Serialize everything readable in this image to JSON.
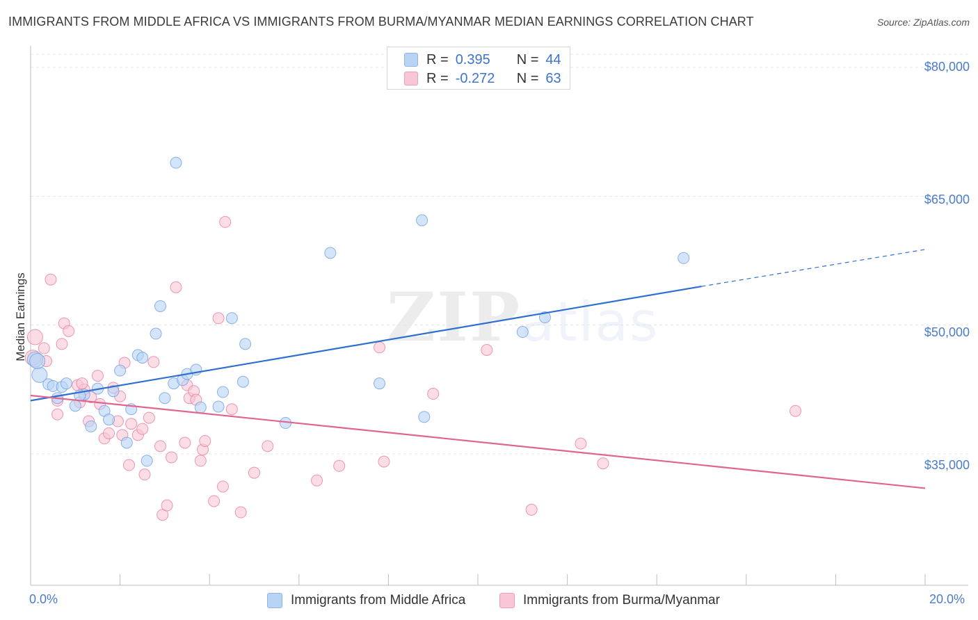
{
  "header": {
    "title": "IMMIGRANTS FROM MIDDLE AFRICA VS IMMIGRANTS FROM BURMA/MYANMAR MEDIAN EARNINGS CORRELATION CHART",
    "source": "Source: ZipAtlas.com"
  },
  "watermark": {
    "zip": "ZIP",
    "atlas": "atlas"
  },
  "legend": {
    "rows": [
      {
        "r_label": "R =",
        "r_value": "0.395",
        "n_label": "N =",
        "n_value": "44"
      },
      {
        "r_label": "R =",
        "r_value": "-0.272",
        "n_label": "N =",
        "n_value": "63"
      }
    ]
  },
  "axes": {
    "ylabel": "Median Earnings",
    "y_ticks": [
      "$80,000",
      "$65,000",
      "$50,000",
      "$35,000"
    ],
    "x_min_label": "0.0%",
    "x_max_label": "20.0%"
  },
  "chart_data": {
    "type": "scatter",
    "title": "IMMIGRANTS FROM MIDDLE AFRICA VS IMMIGRANTS FROM BURMA/MYANMAR MEDIAN EARNINGS CORRELATION CHART",
    "xlabel": "",
    "ylabel": "Median Earnings",
    "xlim": [
      0,
      20
    ],
    "ylim": [
      22000,
      84000
    ],
    "y_ticks": [
      35000,
      50000,
      65000,
      80000
    ],
    "x_unit": "%",
    "grid": true,
    "legend_position": "top-center",
    "series": [
      {
        "name": "Immigrants from Middle Africa",
        "color": "#6fa0e0",
        "fill": "#b9d3f5",
        "r": 0.395,
        "n": 44,
        "trend": {
          "x0": 0,
          "y0": 41200,
          "x1": 15,
          "y1": 54500,
          "dashed_to_x": 20,
          "dashed_to_y": 58800
        },
        "points": [
          [
            0.1,
            46000
          ],
          [
            0.2,
            44200
          ],
          [
            0.4,
            43100
          ],
          [
            0.5,
            42900
          ],
          [
            0.6,
            41500
          ],
          [
            0.7,
            42800
          ],
          [
            0.8,
            43200
          ],
          [
            1.0,
            40600
          ],
          [
            1.2,
            41900
          ],
          [
            1.35,
            38200
          ],
          [
            1.5,
            42600
          ],
          [
            1.65,
            40000
          ],
          [
            1.75,
            39000
          ],
          [
            1.85,
            42300
          ],
          [
            2.0,
            44700
          ],
          [
            2.15,
            36300
          ],
          [
            2.25,
            40200
          ],
          [
            2.4,
            46500
          ],
          [
            2.5,
            46200
          ],
          [
            2.6,
            34200
          ],
          [
            2.8,
            49000
          ],
          [
            2.9,
            52200
          ],
          [
            3.0,
            41500
          ],
          [
            3.2,
            43200
          ],
          [
            3.25,
            68900
          ],
          [
            3.4,
            43600
          ],
          [
            3.5,
            44300
          ],
          [
            3.7,
            44800
          ],
          [
            3.8,
            40400
          ],
          [
            4.2,
            40500
          ],
          [
            4.3,
            42200
          ],
          [
            4.5,
            50800
          ],
          [
            4.75,
            43400
          ],
          [
            4.8,
            47800
          ],
          [
            5.7,
            38600
          ],
          [
            6.7,
            58400
          ],
          [
            7.8,
            43200
          ],
          [
            8.8,
            39300
          ],
          [
            8.75,
            62200
          ],
          [
            11.0,
            49200
          ],
          [
            11.5,
            50900
          ],
          [
            14.6,
            57800
          ],
          [
            0.15,
            45800
          ],
          [
            1.1,
            41800
          ]
        ]
      },
      {
        "name": "Immigrants from Burma/Myanmar",
        "color": "#e87ea2",
        "fill": "#f8c6d6",
        "r": -0.272,
        "n": 63,
        "trend": {
          "x0": 0,
          "y0": 41800,
          "x1": 20,
          "y1": 31000
        },
        "points": [
          [
            0.05,
            46200
          ],
          [
            0.1,
            48600
          ],
          [
            0.3,
            47300
          ],
          [
            0.45,
            55300
          ],
          [
            0.6,
            41200
          ],
          [
            0.6,
            39600
          ],
          [
            0.7,
            47800
          ],
          [
            0.75,
            50200
          ],
          [
            0.85,
            49300
          ],
          [
            1.05,
            43000
          ],
          [
            1.1,
            41000
          ],
          [
            1.2,
            42500
          ],
          [
            1.3,
            38800
          ],
          [
            1.35,
            41600
          ],
          [
            1.5,
            44100
          ],
          [
            1.55,
            40800
          ],
          [
            1.65,
            36800
          ],
          [
            1.75,
            37400
          ],
          [
            1.85,
            42700
          ],
          [
            1.95,
            38800
          ],
          [
            2.05,
            37200
          ],
          [
            2.1,
            45600
          ],
          [
            2.2,
            33700
          ],
          [
            2.25,
            38500
          ],
          [
            2.4,
            37200
          ],
          [
            2.5,
            37900
          ],
          [
            2.55,
            32600
          ],
          [
            2.65,
            39200
          ],
          [
            2.75,
            45700
          ],
          [
            2.9,
            35900
          ],
          [
            2.95,
            27900
          ],
          [
            3.05,
            29000
          ],
          [
            3.15,
            34600
          ],
          [
            3.25,
            54400
          ],
          [
            3.45,
            36300
          ],
          [
            3.5,
            43000
          ],
          [
            3.55,
            41500
          ],
          [
            3.65,
            42300
          ],
          [
            3.7,
            41300
          ],
          [
            3.8,
            34200
          ],
          [
            3.85,
            35500
          ],
          [
            3.9,
            36500
          ],
          [
            4.1,
            29500
          ],
          [
            4.2,
            50800
          ],
          [
            4.3,
            31200
          ],
          [
            4.35,
            62000
          ],
          [
            4.5,
            40200
          ],
          [
            4.7,
            28200
          ],
          [
            5.0,
            32800
          ],
          [
            5.3,
            35900
          ],
          [
            6.4,
            31900
          ],
          [
            6.9,
            33600
          ],
          [
            7.8,
            47400
          ],
          [
            7.9,
            34100
          ],
          [
            9.0,
            42000
          ],
          [
            10.2,
            47100
          ],
          [
            11.2,
            28500
          ],
          [
            12.3,
            36200
          ],
          [
            12.8,
            33900
          ],
          [
            17.1,
            40000
          ],
          [
            2.0,
            41700
          ],
          [
            1.15,
            43200
          ],
          [
            0.35,
            45800
          ]
        ]
      }
    ]
  }
}
